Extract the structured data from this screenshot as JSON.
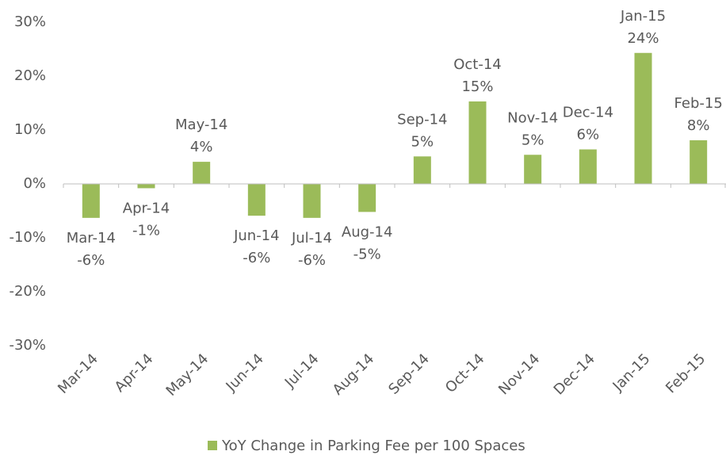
{
  "chart_data": {
    "type": "bar",
    "categories": [
      "Mar-14",
      "Apr-14",
      "May-14",
      "Jun-14",
      "Jul-14",
      "Aug-14",
      "Sep-14",
      "Oct-14",
      "Nov-14",
      "Dec-14",
      "Jan-15",
      "Feb-15"
    ],
    "series": [
      {
        "name": "YoY Change in Parking Fee per 100 Spaces",
        "color": "#9bbb59",
        "values": [
          -6.3,
          -0.8,
          4.1,
          -5.9,
          -6.3,
          -5.2,
          5.1,
          15.3,
          5.4,
          6.4,
          24.3,
          8.1
        ],
        "value_labels": [
          "-6%",
          "-1%",
          "4%",
          "-6%",
          "-6%",
          "-5%",
          "5%",
          "15%",
          "5%",
          "6%",
          "24%",
          "8%"
        ]
      }
    ],
    "ylim": [
      -30,
      30
    ],
    "yticks": [
      {
        "value": -30,
        "label": "-30%"
      },
      {
        "value": -20,
        "label": "-20%"
      },
      {
        "value": -10,
        "label": "-10%"
      },
      {
        "value": 0,
        "label": "0%"
      },
      {
        "value": 10,
        "label": "10%"
      },
      {
        "value": 20,
        "label": "20%"
      },
      {
        "value": 30,
        "label": "30%"
      }
    ],
    "grid": false,
    "legend": "bottom"
  }
}
